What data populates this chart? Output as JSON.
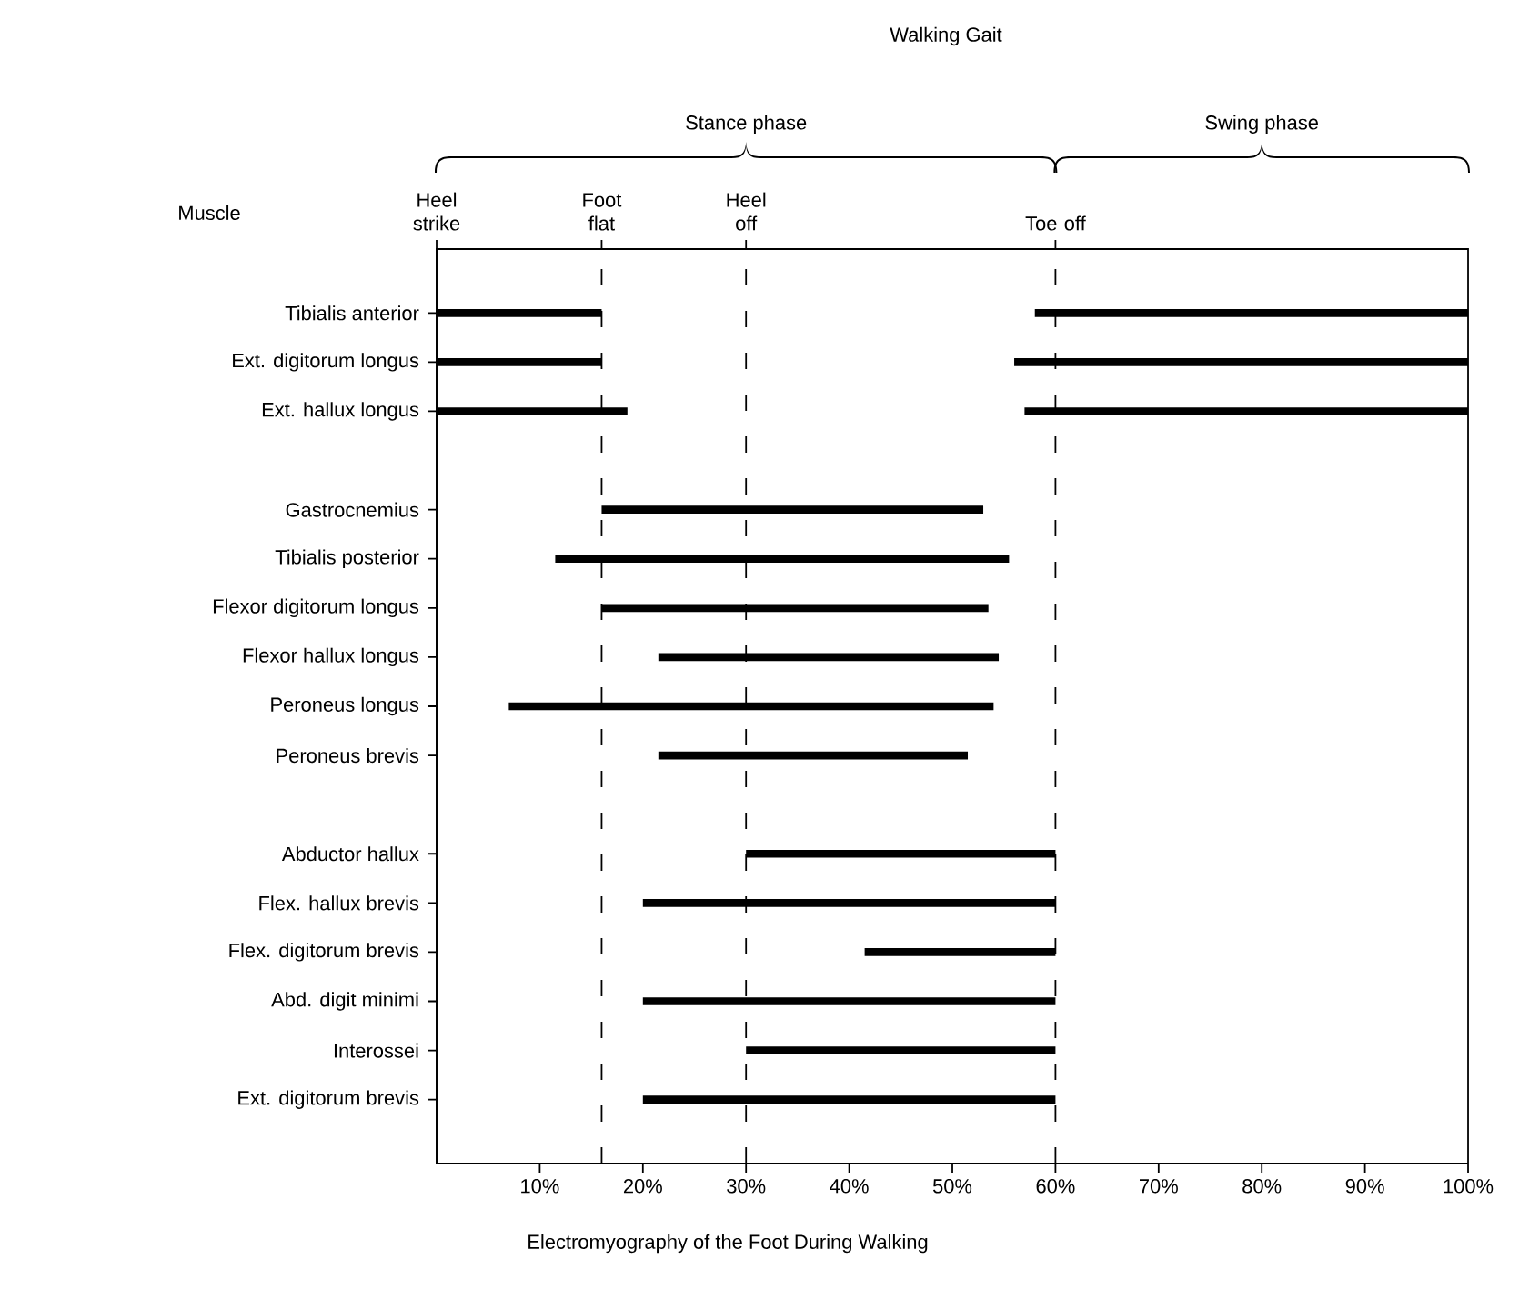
{
  "chart_data": {
    "type": "bar",
    "orientation": "horizontal",
    "title": "Walking Gait",
    "xlabel": "Electromyography of the Foot During Walking",
    "ylabel": "Muscle",
    "categories": [
      "Tibialis anterior",
      "Ext. digitorum longus",
      "Ext. hallux longus",
      null,
      "Gastrocnemius",
      "Tibialis posterior",
      "Flexor digitorum longus",
      "Flexor hallux longus",
      "Peroneus longus",
      "Peroneus brevis",
      null,
      "Abductor hallux",
      "Flex. hallux brevis",
      "Flex. digitorum brevis",
      "Abd. digit minimi",
      "Interossei",
      "Ext. digitorum brevis"
    ],
    "series": [
      {
        "color": "#000000",
        "base": [
          0,
          0,
          0,
          null,
          16,
          11.5,
          16,
          21.5,
          7,
          21.5,
          null,
          30,
          20,
          41.5,
          20,
          30,
          20
        ],
        "values": [
          16,
          16,
          18.5,
          null,
          37,
          44,
          37.5,
          33,
          47,
          30,
          null,
          30,
          40,
          18.5,
          40,
          30,
          40
        ]
      },
      {
        "color": "#000000",
        "base": [
          58,
          56,
          57,
          null,
          null,
          null,
          null,
          null,
          null,
          null,
          null,
          null,
          null,
          null,
          null,
          null,
          null
        ],
        "values": [
          42,
          44,
          43,
          null,
          null,
          null,
          null,
          null,
          null,
          null,
          null,
          null,
          null,
          null,
          null,
          null,
          null
        ]
      }
    ],
    "xlim": [
      0,
      100
    ],
    "xticks": [
      {
        "value": 10,
        "label": "10%"
      },
      {
        "value": 20,
        "label": "20%"
      },
      {
        "value": 30,
        "label": "30%"
      },
      {
        "value": 40,
        "label": "40%"
      },
      {
        "value": 50,
        "label": "50%"
      },
      {
        "value": 60,
        "label": "60%"
      },
      {
        "value": 70,
        "label": "70%"
      },
      {
        "value": 80,
        "label": "80%"
      },
      {
        "value": 90,
        "label": "90%"
      },
      {
        "value": 100,
        "label": "100%"
      }
    ],
    "ref_lines": [
      {
        "axis": "x",
        "value": 0,
        "label": "Heel strike",
        "line_style": "solid"
      },
      {
        "axis": "x",
        "value": 16,
        "label": "Foot flat",
        "line_style": "dashed"
      },
      {
        "axis": "x",
        "value": 30,
        "label": "Heel off",
        "line_style": "dashed"
      },
      {
        "axis": "x",
        "value": 60,
        "label": "Toe off",
        "line_style": "dashed"
      }
    ],
    "annotations": [
      "Stance phase",
      "Swing phase"
    ],
    "grid": false
  }
}
